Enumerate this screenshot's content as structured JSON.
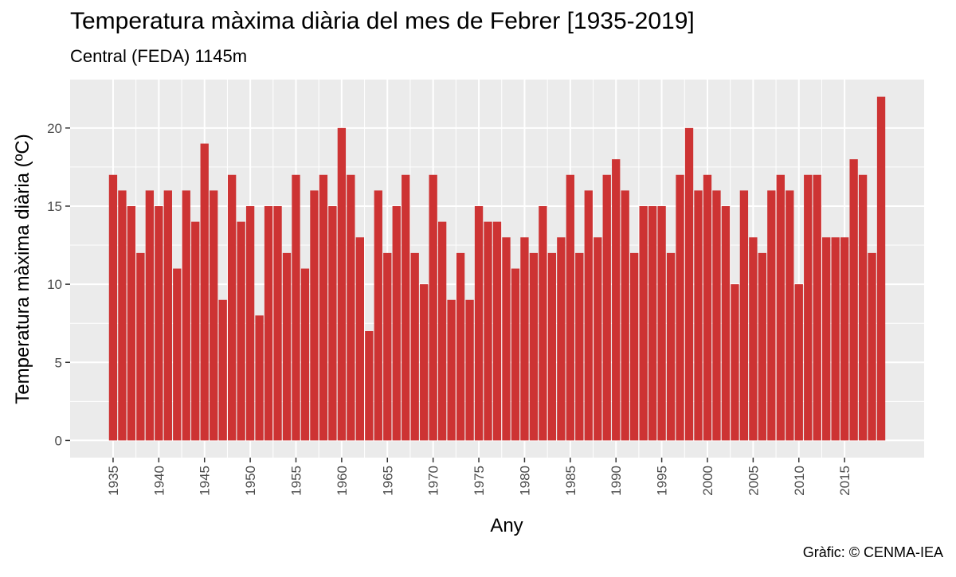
{
  "chart_data": {
    "type": "bar",
    "title": "Temperatura màxima diària del mes de Febrer [1935-2019]",
    "subtitle": "Central (FEDA) 1145m",
    "caption": "Gràfic: © CENMA-IEA",
    "xlabel": "Any",
    "ylabel": "Temperatura màxima diària (ºC)",
    "ylim": [
      0,
      22
    ],
    "yticks": [
      0,
      5,
      10,
      15,
      20
    ],
    "xticks": [
      1935,
      1940,
      1945,
      1950,
      1955,
      1960,
      1965,
      1970,
      1975,
      1980,
      1985,
      1990,
      1995,
      2000,
      2005,
      2010,
      2015
    ],
    "grid": true,
    "bar_color": "#cd3333",
    "panel_color": "#ebebeb",
    "x": [
      1935,
      1936,
      1937,
      1938,
      1939,
      1940,
      1941,
      1942,
      1943,
      1944,
      1945,
      1946,
      1947,
      1948,
      1949,
      1950,
      1951,
      1952,
      1953,
      1954,
      1955,
      1956,
      1957,
      1958,
      1959,
      1960,
      1961,
      1962,
      1963,
      1964,
      1965,
      1966,
      1967,
      1968,
      1969,
      1970,
      1971,
      1972,
      1973,
      1974,
      1975,
      1976,
      1977,
      1978,
      1979,
      1980,
      1981,
      1982,
      1983,
      1984,
      1985,
      1986,
      1987,
      1988,
      1989,
      1990,
      1991,
      1992,
      1993,
      1994,
      1995,
      1996,
      1997,
      1998,
      1999,
      2000,
      2001,
      2002,
      2003,
      2004,
      2005,
      2006,
      2007,
      2008,
      2009,
      2010,
      2011,
      2012,
      2013,
      2014,
      2015,
      2016,
      2017,
      2018,
      2019
    ],
    "values": [
      17,
      16,
      15,
      12,
      16,
      15,
      16,
      11,
      16,
      14,
      19,
      16,
      9,
      17,
      14,
      15,
      8,
      15,
      15,
      12,
      17,
      11,
      16,
      17,
      15,
      20,
      17,
      13,
      7,
      16,
      12,
      15,
      17,
      12,
      10,
      17,
      14,
      9,
      12,
      9,
      15,
      14,
      14,
      13,
      11,
      13,
      12,
      15,
      12,
      13,
      17,
      12,
      16,
      13,
      17,
      18,
      16,
      12,
      15,
      15,
      15,
      12,
      17,
      20,
      16,
      17,
      16,
      15,
      10,
      16,
      13,
      12,
      16,
      17,
      16,
      10,
      17,
      17,
      13,
      13,
      13,
      18,
      17,
      12,
      22
    ]
  }
}
